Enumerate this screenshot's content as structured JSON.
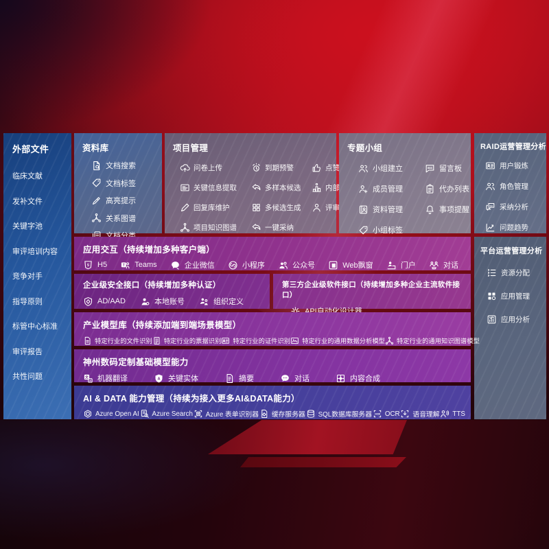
{
  "colors": {
    "background_red": "#b01020",
    "sidebar_blue": "#25579d",
    "top_panel_slate": "#53678f",
    "project_mauve": "#7a6880",
    "purple_row": "#8d37a0",
    "indigo_row": "#46409c",
    "right_panel_slate": "#5a667e"
  },
  "sidebar": {
    "title": "外部文件",
    "items": [
      "临床文献",
      "发补文件",
      "关键字池",
      "审评培训内容",
      "竞争对手",
      "指导原则",
      "标管中心标准",
      "审评报告",
      "共性问题"
    ]
  },
  "library": {
    "title": "资料库",
    "items": [
      {
        "icon": "doc-search-icon",
        "label": "文档搜索"
      },
      {
        "icon": "tag-icon",
        "label": "文档标签"
      },
      {
        "icon": "highlight-pen-icon",
        "label": "高亮提示"
      },
      {
        "icon": "graph-icon",
        "label": "关系图谱"
      },
      {
        "icon": "docs-icon",
        "label": "文档分类"
      }
    ]
  },
  "project": {
    "title": "项目管理",
    "items": [
      {
        "icon": "cloud-upload-icon",
        "label": "问卷上传"
      },
      {
        "icon": "alarm-icon",
        "label": "到期预警"
      },
      {
        "icon": "thumb-up-icon",
        "label": "点赞感谢"
      },
      {
        "icon": "info-card-icon",
        "label": "关键信息提取"
      },
      {
        "icon": "reply-arrow-icon",
        "label": "多样本候选"
      },
      {
        "icon": "podium-icon",
        "label": "内部专家排名"
      },
      {
        "icon": "edit-pen-icon",
        "label": "回复库维护"
      },
      {
        "icon": "grid-gen-icon",
        "label": "多候选生成"
      },
      {
        "icon": "person-icon",
        "label": "评审员画像"
      },
      {
        "icon": "graph-icon",
        "label": "项目知识图谱"
      },
      {
        "icon": "reply-arrow-icon",
        "label": "一键采纳"
      }
    ]
  },
  "groups": {
    "title": "专题小组",
    "items": [
      {
        "icon": "people-icon",
        "label": "小组建立"
      },
      {
        "icon": "bbs-icon",
        "label": "留言板"
      },
      {
        "icon": "person-add-icon",
        "label": "成员管理"
      },
      {
        "icon": "clipboard-icon",
        "label": "代办列表"
      },
      {
        "icon": "album-icon",
        "label": "资料管理"
      },
      {
        "icon": "bell-icon",
        "label": "事项提醒"
      },
      {
        "icon": "tag-icon",
        "label": "小组标签"
      }
    ]
  },
  "raid": {
    "title": "RAID运营管理分析",
    "items": [
      {
        "icon": "id-card-icon",
        "label": "用户锻炼"
      },
      {
        "icon": "people-icon",
        "label": "角色管理"
      },
      {
        "icon": "chat-analysis-icon",
        "label": "采纳分析"
      },
      {
        "icon": "trend-icon",
        "label": "问题趋势"
      }
    ]
  },
  "platform": {
    "title": "平台运营管理分析",
    "items": [
      {
        "icon": "allocation-list-icon",
        "label": "资源分配"
      },
      {
        "icon": "apps-icon",
        "label": "应用管理"
      },
      {
        "icon": "app-chart-icon",
        "label": "应用分析"
      }
    ]
  },
  "interaction": {
    "title": "应用交互（持续增加多种客户端）",
    "items": [
      {
        "icon": "html5-icon",
        "label": "H5"
      },
      {
        "icon": "teams-icon",
        "label": "Teams"
      },
      {
        "icon": "wechat-work-icon",
        "label": "企业微信"
      },
      {
        "icon": "mini-program-icon",
        "label": "小程序"
      },
      {
        "icon": "official-account-icon",
        "label": "公众号"
      },
      {
        "icon": "web-window-icon",
        "label": "Web飘窗"
      },
      {
        "icon": "portal-icon",
        "label": "门户"
      },
      {
        "icon": "dialog-icon",
        "label": "对话"
      }
    ]
  },
  "security": {
    "title": "企业级安全接口（持续增加多种认证）",
    "items": [
      {
        "icon": "shield-icon",
        "label": "AD/AAD"
      },
      {
        "icon": "local-account-icon",
        "label": "本地账号"
      },
      {
        "icon": "org-icon",
        "label": "组织定义"
      }
    ]
  },
  "thirdparty": {
    "title": "第三方企业级软件接口（持续增加多种企业主流软件接口）",
    "items": [
      {
        "icon": "api-gear-icon",
        "label": "API自动化设计器"
      }
    ]
  },
  "models": {
    "title": "产业模型库（持续添加端到端场景模型）",
    "items": [
      {
        "icon": "doc-file-icon",
        "label": "特定行业的文件识别"
      },
      {
        "icon": "receipt-icon",
        "label": "特定行业的票据识别"
      },
      {
        "icon": "id-card-icon",
        "label": "特定行业的证件识别"
      },
      {
        "icon": "image-model-icon",
        "label": "特定行业的通用数据分析模型"
      },
      {
        "icon": "graph-icon",
        "label": "特定行业的通用知识图谱模型"
      }
    ]
  },
  "base_models": {
    "title": "神州数码定制基础模型能力",
    "items": [
      {
        "icon": "translate-icon",
        "label": "机器翻译"
      },
      {
        "icon": "entity-shield-icon",
        "label": "关键实体"
      },
      {
        "icon": "summary-doc-icon",
        "label": "摘要"
      },
      {
        "icon": "chat-icon",
        "label": "对话"
      },
      {
        "icon": "compose-grid-icon",
        "label": "内容合成"
      }
    ]
  },
  "ai_data": {
    "title": "AI & DATA 能力管理（持续为接入更多AI&DATA能力）",
    "items": [
      {
        "icon": "openai-icon",
        "label": "Azure Open AI"
      },
      {
        "icon": "azure-search-icon",
        "label": "Azure Search"
      },
      {
        "icon": "form-scan-icon",
        "label": "Azure 表单识别器"
      },
      {
        "icon": "cache-server-icon",
        "label": "缓存服务器"
      },
      {
        "icon": "sql-db-icon",
        "label": "SQL数据库服务器"
      },
      {
        "icon": "ocr-icon",
        "label": "OCR"
      },
      {
        "icon": "speech-icon",
        "label": "语音理解"
      },
      {
        "icon": "tts-icon",
        "label": "TTS"
      }
    ]
  }
}
